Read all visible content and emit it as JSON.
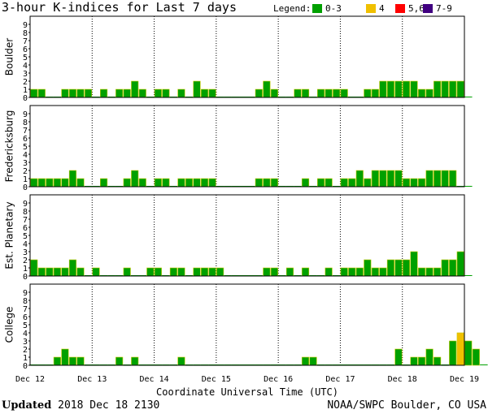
{
  "title": "3-hour K-indices for Last 7 days",
  "legend": {
    "label": "Legend:",
    "items": [
      {
        "text": "0-3",
        "color": "#00a000"
      },
      {
        "text": "4",
        "color": "#f0c000"
      },
      {
        "text": "5,6",
        "color": "#ff0000"
      },
      {
        "text": "7-9",
        "color": "#400080"
      }
    ]
  },
  "footer": {
    "updated_label": "Updated",
    "updated_value": "2018 Dec 18 2130",
    "source": "NOAA/SWPC Boulder, CO USA"
  },
  "chart_data": {
    "type": "bar",
    "x_axis_label": "Coordinate Universal Time (UTC)",
    "x_tick_labels": [
      "Dec 12",
      "Dec 13",
      "Dec 14",
      "Dec 15",
      "Dec 16",
      "Dec 17",
      "Dec 18",
      "Dec 19"
    ],
    "y_ticks": [
      0,
      1,
      2,
      3,
      4,
      5,
      6,
      7,
      8,
      9
    ],
    "ylim": [
      0,
      9
    ],
    "bins_per_day": 8,
    "color_key": {
      "0-3": "#00a000",
      "4": "#f0c000",
      "5-6": "#ff0000",
      "7-9": "#400080"
    },
    "panels": [
      {
        "name": "Boulder",
        "values": [
          1,
          1,
          0,
          0,
          1,
          1,
          1,
          1,
          0,
          1,
          0,
          1,
          1,
          2,
          1,
          0,
          1,
          1,
          0,
          1,
          0,
          2,
          1,
          1,
          0,
          0,
          0,
          0,
          0,
          1,
          2,
          1,
          0,
          0,
          1,
          1,
          0,
          1,
          1,
          1,
          1,
          0,
          0,
          1,
          1,
          2,
          2,
          2,
          2,
          2,
          1,
          1,
          2,
          2,
          2,
          2,
          0
        ]
      },
      {
        "name": "Fredericksburg",
        "values": [
          1,
          1,
          1,
          1,
          1,
          2,
          1,
          0,
          0,
          1,
          0,
          0,
          1,
          2,
          1,
          0,
          1,
          1,
          0,
          1,
          1,
          1,
          1,
          1,
          0,
          0,
          0,
          0,
          0,
          1,
          1,
          1,
          0,
          0,
          0,
          1,
          0,
          1,
          1,
          0,
          1,
          1,
          2,
          1,
          2,
          2,
          2,
          2,
          1,
          1,
          1,
          2,
          2,
          2,
          2,
          0,
          0
        ]
      },
      {
        "name": "Est. Planetary",
        "values": [
          2,
          1,
          1,
          1,
          1,
          2,
          1,
          0,
          1,
          0,
          0,
          0,
          1,
          0,
          0,
          1,
          1,
          0,
          1,
          1,
          0,
          1,
          1,
          1,
          1,
          0,
          0,
          0,
          0,
          0,
          1,
          1,
          0,
          1,
          0,
          1,
          0,
          0,
          1,
          0,
          1,
          1,
          1,
          2,
          1,
          1,
          2,
          2,
          2,
          3,
          1,
          1,
          1,
          2,
          2,
          3,
          0
        ]
      },
      {
        "name": "College",
        "values": [
          0,
          0,
          0,
          1,
          2,
          1,
          1,
          0,
          0,
          0,
          0,
          1,
          0,
          1,
          0,
          0,
          0,
          0,
          0,
          1,
          0,
          0,
          0,
          0,
          0,
          0,
          0,
          0,
          0,
          0,
          0,
          0,
          0,
          0,
          0,
          1,
          1,
          0,
          0,
          0,
          0,
          0,
          0,
          0,
          0,
          0,
          0,
          2,
          0,
          1,
          1,
          2,
          1,
          0,
          3,
          4,
          3,
          2,
          0
        ]
      }
    ]
  }
}
